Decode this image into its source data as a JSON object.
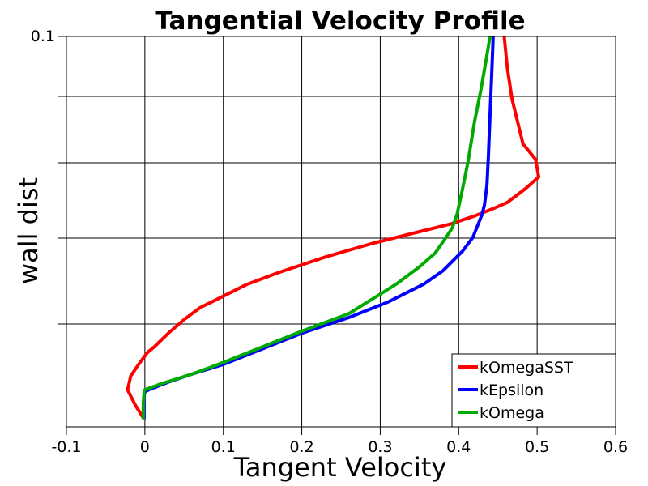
{
  "chart_data": {
    "type": "line",
    "title": "Tangential Velocity Profile",
    "xlabel": "Tangent Velocity",
    "ylabel": "wall dist",
    "xlim": [
      -0.1,
      0.6
    ],
    "ylim": [
      0,
      0.1
    ],
    "x_ticks": [
      "-0.1",
      "0",
      "0.1",
      "0.2",
      "0.3",
      "0.4",
      "0.5",
      "0.6"
    ],
    "y_ticks": [
      "0.1"
    ],
    "grid": true,
    "legend_position": "bottom-right",
    "series": [
      {
        "name": "kOmegaSST",
        "color": "#ff0000",
        "points": [
          [
            -0.001,
            0.002
          ],
          [
            -0.012,
            0.0055
          ],
          [
            -0.022,
            0.0095
          ],
          [
            -0.018,
            0.013
          ],
          [
            -0.008,
            0.016
          ],
          [
            0.003,
            0.019
          ],
          [
            0.012,
            0.0205
          ],
          [
            0.03,
            0.024
          ],
          [
            0.05,
            0.0275
          ],
          [
            0.07,
            0.0305
          ],
          [
            0.09,
            0.0325
          ],
          [
            0.13,
            0.0365
          ],
          [
            0.17,
            0.0395
          ],
          [
            0.23,
            0.0435
          ],
          [
            0.29,
            0.047
          ],
          [
            0.35,
            0.05
          ],
          [
            0.39,
            0.052
          ],
          [
            0.42,
            0.054
          ],
          [
            0.445,
            0.056
          ],
          [
            0.462,
            0.0575
          ],
          [
            0.485,
            0.061
          ],
          [
            0.502,
            0.064
          ],
          [
            0.498,
            0.0685
          ],
          [
            0.482,
            0.0725
          ],
          [
            0.468,
            0.084
          ],
          [
            0.462,
            0.092
          ],
          [
            0.458,
            0.1
          ]
        ]
      },
      {
        "name": "kEpsilon",
        "color": "#0000ff",
        "points": [
          [
            -0.001,
            0.002
          ],
          [
            -0.001,
            0.008
          ],
          [
            0.0,
            0.009
          ],
          [
            0.005,
            0.0095
          ],
          [
            0.03,
            0.0115
          ],
          [
            0.06,
            0.0135
          ],
          [
            0.1,
            0.016
          ],
          [
            0.15,
            0.02
          ],
          [
            0.2,
            0.024
          ],
          [
            0.26,
            0.028
          ],
          [
            0.31,
            0.032
          ],
          [
            0.355,
            0.0365
          ],
          [
            0.38,
            0.04
          ],
          [
            0.405,
            0.045
          ],
          [
            0.418,
            0.0485
          ],
          [
            0.425,
            0.052
          ],
          [
            0.43,
            0.0545
          ],
          [
            0.433,
            0.057
          ],
          [
            0.436,
            0.062
          ],
          [
            0.438,
            0.07
          ],
          [
            0.44,
            0.08
          ],
          [
            0.442,
            0.09
          ],
          [
            0.444,
            0.1
          ]
        ]
      },
      {
        "name": "kOmega",
        "color": "#00aa00",
        "points": [
          [
            -0.002,
            0.002
          ],
          [
            -0.002,
            0.006
          ],
          [
            -0.001,
            0.009
          ],
          [
            0.0,
            0.0095
          ],
          [
            0.02,
            0.011
          ],
          [
            0.06,
            0.0135
          ],
          [
            0.1,
            0.0165
          ],
          [
            0.15,
            0.0205
          ],
          [
            0.2,
            0.0245
          ],
          [
            0.26,
            0.029
          ],
          [
            0.32,
            0.0365
          ],
          [
            0.35,
            0.041
          ],
          [
            0.37,
            0.0445
          ],
          [
            0.382,
            0.048
          ],
          [
            0.392,
            0.051
          ],
          [
            0.398,
            0.0545
          ],
          [
            0.405,
            0.061
          ],
          [
            0.412,
            0.068
          ],
          [
            0.42,
            0.078
          ],
          [
            0.428,
            0.086
          ],
          [
            0.435,
            0.094
          ],
          [
            0.44,
            0.1
          ]
        ]
      }
    ]
  }
}
